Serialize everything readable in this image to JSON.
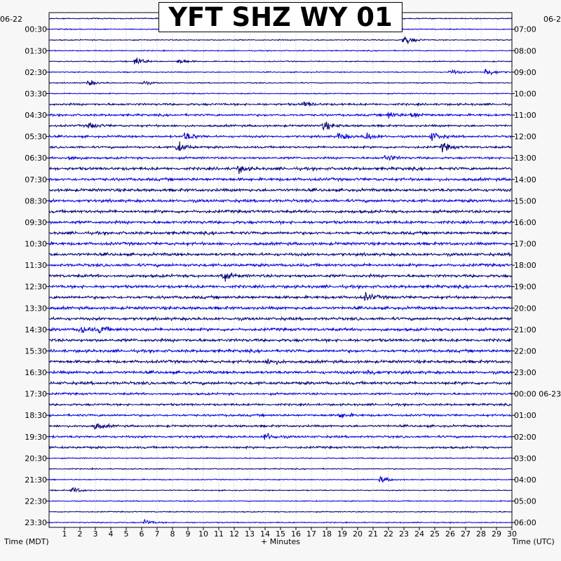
{
  "chart_data": {
    "type": "line",
    "title": "YFT SHZ WY 01",
    "date_left": "06-22",
    "date_right": "06-2",
    "xlabel": "+ Minutes",
    "left_axis_label": "Time (MDT)",
    "right_axis_label": "Time (UTC)",
    "xlim": [
      0,
      30
    ],
    "x_ticks": [
      "1",
      "2",
      "3",
      "4",
      "5",
      "6",
      "7",
      "8",
      "9",
      "10",
      "11",
      "12",
      "13",
      "14",
      "15",
      "16",
      "17",
      "18",
      "19",
      "20",
      "21",
      "22",
      "23",
      "24",
      "25",
      "26",
      "27",
      "28",
      "29",
      "30"
    ],
    "row_minutes": 30,
    "row_count": 48,
    "left_time_labels": [
      "00:30",
      "01:30",
      "02:30",
      "03:30",
      "04:30",
      "05:30",
      "06:30",
      "07:30",
      "08:30",
      "09:30",
      "10:30",
      "11:30",
      "12:30",
      "13:30",
      "14:30",
      "15:30",
      "16:30",
      "17:30",
      "18:30",
      "19:30",
      "20:30",
      "21:30",
      "22:30",
      "23:30"
    ],
    "right_time_labels": [
      "07:00",
      "08:00",
      "09:00",
      "10:00",
      "11:00",
      "12:00",
      "13:00",
      "14:00",
      "15:00",
      "16:00",
      "17:00",
      "18:00",
      "19:00",
      "20:00",
      "21:00",
      "22:00",
      "23:00",
      "00:00 06-23",
      "01:00",
      "02:00",
      "03:00",
      "04:00",
      "05:00",
      "06:00"
    ],
    "trace_colors": [
      "#00007a",
      "#0000ee"
    ],
    "events": [
      {
        "row": 2,
        "minute": 23,
        "amplitude": 1.0
      },
      {
        "row": 4,
        "minute": 5.6,
        "amplitude": 0.9
      },
      {
        "row": 4,
        "minute": 8.4,
        "amplitude": 0.5
      },
      {
        "row": 5,
        "minute": 28.3,
        "amplitude": 0.9
      },
      {
        "row": 5,
        "minute": 26,
        "amplitude": 0.5
      },
      {
        "row": 6,
        "minute": 2.5,
        "amplitude": 0.6
      },
      {
        "row": 6,
        "minute": 6,
        "amplitude": 0.4
      },
      {
        "row": 8,
        "minute": 16.5,
        "amplitude": 0.5
      },
      {
        "row": 9,
        "minute": 22,
        "amplitude": 0.6
      },
      {
        "row": 9,
        "minute": 23.5,
        "amplitude": 0.6
      },
      {
        "row": 10,
        "minute": 17.8,
        "amplitude": 0.8
      },
      {
        "row": 10,
        "minute": 2.6,
        "amplitude": 0.6
      },
      {
        "row": 11,
        "minute": 8.8,
        "amplitude": 0.8
      },
      {
        "row": 11,
        "minute": 18.8,
        "amplitude": 0.7
      },
      {
        "row": 11,
        "minute": 20.5,
        "amplitude": 0.8
      },
      {
        "row": 11,
        "minute": 24.8,
        "amplitude": 0.8
      },
      {
        "row": 12,
        "minute": 8.3,
        "amplitude": 1.0
      },
      {
        "row": 12,
        "minute": 25.5,
        "amplitude": 0.8
      },
      {
        "row": 13,
        "minute": 21.8,
        "amplitude": 0.7
      },
      {
        "row": 13,
        "minute": 1.2,
        "amplitude": 0.5
      },
      {
        "row": 14,
        "minute": 12.3,
        "amplitude": 0.6
      },
      {
        "row": 24,
        "minute": 11.2,
        "amplitude": 0.8
      },
      {
        "row": 26,
        "minute": 20.5,
        "amplitude": 0.6
      },
      {
        "row": 29,
        "minute": 2.0,
        "amplitude": 0.7
      },
      {
        "row": 29,
        "minute": 3.3,
        "amplitude": 0.6
      },
      {
        "row": 32,
        "minute": 14.2,
        "amplitude": 0.6
      },
      {
        "row": 33,
        "minute": 20.6,
        "amplitude": 0.5
      },
      {
        "row": 37,
        "minute": 18.8,
        "amplitude": 0.5
      },
      {
        "row": 38,
        "minute": 3.0,
        "amplitude": 0.6
      },
      {
        "row": 39,
        "minute": 14.0,
        "amplitude": 0.7
      },
      {
        "row": 43,
        "minute": 21.5,
        "amplitude": 0.6
      },
      {
        "row": 44,
        "minute": 1.5,
        "amplitude": 0.6
      },
      {
        "row": 47,
        "minute": 6.2,
        "amplitude": 0.5
      }
    ]
  }
}
